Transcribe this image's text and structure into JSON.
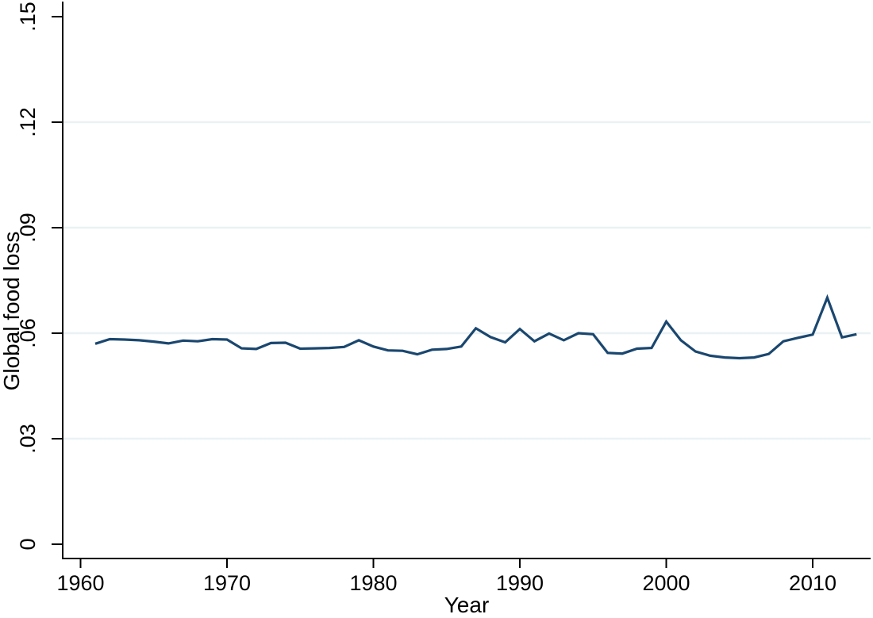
{
  "figure": {
    "background_color": "#ffffff"
  },
  "chart_data": {
    "type": "line",
    "title": "",
    "xlabel": "Year",
    "ylabel": "Global food loss",
    "x": [
      1961,
      1962,
      1963,
      1964,
      1965,
      1966,
      1967,
      1968,
      1969,
      1970,
      1971,
      1972,
      1973,
      1974,
      1975,
      1976,
      1977,
      1978,
      1979,
      1980,
      1981,
      1982,
      1983,
      1984,
      1985,
      1986,
      1987,
      1988,
      1989,
      1990,
      1991,
      1992,
      1993,
      1994,
      1995,
      1996,
      1997,
      1998,
      1999,
      2000,
      2001,
      2002,
      2003,
      2004,
      2005,
      2006,
      2007,
      2008,
      2009,
      2010,
      2011,
      2012,
      2013
    ],
    "series": [
      {
        "name": "Global food loss",
        "color": "#1a476f",
        "values": [
          0.057,
          0.0583,
          0.0582,
          0.058,
          0.0576,
          0.0571,
          0.0579,
          0.0577,
          0.0583,
          0.0582,
          0.0557,
          0.0555,
          0.0572,
          0.0573,
          0.0556,
          0.0557,
          0.0558,
          0.0561,
          0.058,
          0.0562,
          0.0551,
          0.055,
          0.054,
          0.0553,
          0.0555,
          0.0562,
          0.0614,
          0.0589,
          0.0574,
          0.0612,
          0.0577,
          0.0599,
          0.058,
          0.06,
          0.0597,
          0.0544,
          0.0542,
          0.0556,
          0.0558,
          0.0633,
          0.058,
          0.0548,
          0.0536,
          0.0531,
          0.0529,
          0.0531,
          0.0541,
          0.0577,
          0.0587,
          0.0596,
          0.0701,
          0.0588,
          0.0597
        ]
      }
    ],
    "xlim": [
      1958.8,
      2014.0
    ],
    "ylim": [
      0,
      0.15
    ],
    "x_ticks": [
      {
        "value": 1960,
        "label": "1960"
      },
      {
        "value": 1970,
        "label": "1970"
      },
      {
        "value": 1980,
        "label": "1980"
      },
      {
        "value": 1990,
        "label": "1990"
      },
      {
        "value": 2000,
        "label": "2000"
      },
      {
        "value": 2010,
        "label": "2010"
      }
    ],
    "y_ticks": [
      {
        "value": 0.0,
        "label": "0"
      },
      {
        "value": 0.03,
        "label": ".03"
      },
      {
        "value": 0.06,
        "label": ".06"
      },
      {
        "value": 0.09,
        "label": ".09"
      },
      {
        "value": 0.12,
        "label": ".12"
      },
      {
        "value": 0.15,
        "label": ".15"
      }
    ],
    "gridline_values": [
      0.03,
      0.06,
      0.09,
      0.12
    ],
    "grid": "horizontal-only",
    "legend_position": "none",
    "colors": {
      "line": "#1a476f",
      "gridline": "#eaf2f3",
      "axis": "#000000",
      "text": "#000000"
    }
  }
}
